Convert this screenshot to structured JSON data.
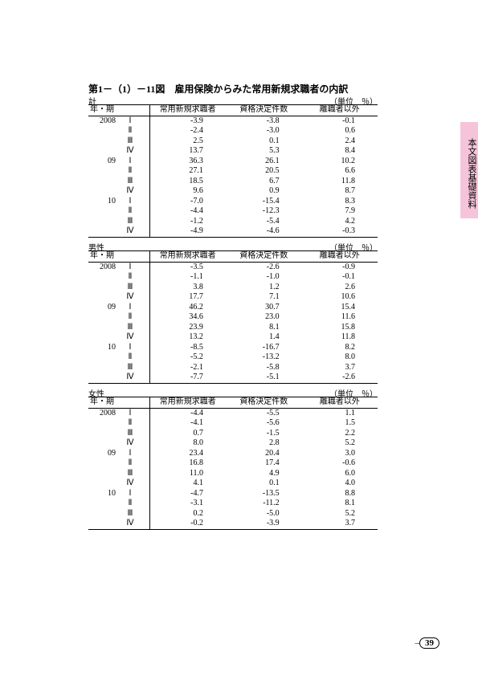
{
  "title": "第1－（1）－11図　雇用保険からみた常用新規求職者の内訳",
  "sideTab": "本文図表基礎資料",
  "headers": {
    "period": "年・期",
    "c1": "常用新規求職者",
    "c2": "資格決定件数",
    "c3": "離職者以外"
  },
  "unit": "（単位　％）",
  "tables": [
    {
      "label": "計",
      "rows": [
        {
          "y": "2008",
          "q": "Ⅰ",
          "v": [
            "-3.9",
            "-3.8",
            "-0.1"
          ]
        },
        {
          "y": "",
          "q": "Ⅱ",
          "v": [
            "-2.4",
            "-3.0",
            "0.6"
          ]
        },
        {
          "y": "",
          "q": "Ⅲ",
          "v": [
            "2.5",
            "0.1",
            "2.4"
          ]
        },
        {
          "y": "",
          "q": "Ⅳ",
          "v": [
            "13.7",
            "5.3",
            "8.4"
          ]
        },
        {
          "y": "09",
          "q": "Ⅰ",
          "v": [
            "36.3",
            "26.1",
            "10.2"
          ]
        },
        {
          "y": "",
          "q": "Ⅱ",
          "v": [
            "27.1",
            "20.5",
            "6.6"
          ]
        },
        {
          "y": "",
          "q": "Ⅲ",
          "v": [
            "18.5",
            "6.7",
            "11.8"
          ]
        },
        {
          "y": "",
          "q": "Ⅳ",
          "v": [
            "9.6",
            "0.9",
            "8.7"
          ]
        },
        {
          "y": "10",
          "q": "Ⅰ",
          "v": [
            "-7.0",
            "-15.4",
            "8.3"
          ]
        },
        {
          "y": "",
          "q": "Ⅱ",
          "v": [
            "-4.4",
            "-12.3",
            "7.9"
          ]
        },
        {
          "y": "",
          "q": "Ⅲ",
          "v": [
            "-1.2",
            "-5.4",
            "4.2"
          ]
        },
        {
          "y": "",
          "q": "Ⅳ",
          "v": [
            "-4.9",
            "-4.6",
            "-0.3"
          ]
        }
      ]
    },
    {
      "label": "男性",
      "rows": [
        {
          "y": "2008",
          "q": "Ⅰ",
          "v": [
            "-3.5",
            "-2.6",
            "-0.9"
          ]
        },
        {
          "y": "",
          "q": "Ⅱ",
          "v": [
            "-1.1",
            "-1.0",
            "-0.1"
          ]
        },
        {
          "y": "",
          "q": "Ⅲ",
          "v": [
            "3.8",
            "1.2",
            "2.6"
          ]
        },
        {
          "y": "",
          "q": "Ⅳ",
          "v": [
            "17.7",
            "7.1",
            "10.6"
          ]
        },
        {
          "y": "09",
          "q": "Ⅰ",
          "v": [
            "46.2",
            "30.7",
            "15.4"
          ]
        },
        {
          "y": "",
          "q": "Ⅱ",
          "v": [
            "34.6",
            "23.0",
            "11.6"
          ]
        },
        {
          "y": "",
          "q": "Ⅲ",
          "v": [
            "23.9",
            "8.1",
            "15.8"
          ]
        },
        {
          "y": "",
          "q": "Ⅳ",
          "v": [
            "13.2",
            "1.4",
            "11.8"
          ]
        },
        {
          "y": "10",
          "q": "Ⅰ",
          "v": [
            "-8.5",
            "-16.7",
            "8.2"
          ]
        },
        {
          "y": "",
          "q": "Ⅱ",
          "v": [
            "-5.2",
            "-13.2",
            "8.0"
          ]
        },
        {
          "y": "",
          "q": "Ⅲ",
          "v": [
            "-2.1",
            "-5.8",
            "3.7"
          ]
        },
        {
          "y": "",
          "q": "Ⅳ",
          "v": [
            "-7.7",
            "-5.1",
            "-2.6"
          ]
        }
      ]
    },
    {
      "label": "女性",
      "rows": [
        {
          "y": "2008",
          "q": "Ⅰ",
          "v": [
            "-4.4",
            "-5.5",
            "1.1"
          ]
        },
        {
          "y": "",
          "q": "Ⅱ",
          "v": [
            "-4.1",
            "-5.6",
            "1.5"
          ]
        },
        {
          "y": "",
          "q": "Ⅲ",
          "v": [
            "0.7",
            "-1.5",
            "2.2"
          ]
        },
        {
          "y": "",
          "q": "Ⅳ",
          "v": [
            "8.0",
            "2.8",
            "5.2"
          ]
        },
        {
          "y": "09",
          "q": "Ⅰ",
          "v": [
            "23.4",
            "20.4",
            "3.0"
          ]
        },
        {
          "y": "",
          "q": "Ⅱ",
          "v": [
            "16.8",
            "17.4",
            "-0.6"
          ]
        },
        {
          "y": "",
          "q": "Ⅲ",
          "v": [
            "11.0",
            "4.9",
            "6.0"
          ]
        },
        {
          "y": "",
          "q": "Ⅳ",
          "v": [
            "4.1",
            "0.1",
            "4.0"
          ]
        },
        {
          "y": "10",
          "q": "Ⅰ",
          "v": [
            "-4.7",
            "-13.5",
            "8.8"
          ]
        },
        {
          "y": "",
          "q": "Ⅱ",
          "v": [
            "-3.1",
            "-11.2",
            "8.1"
          ]
        },
        {
          "y": "",
          "q": "Ⅲ",
          "v": [
            "0.2",
            "-5.0",
            "5.2"
          ]
        },
        {
          "y": "",
          "q": "Ⅳ",
          "v": [
            "-0.2",
            "-3.9",
            "3.7"
          ]
        }
      ]
    }
  ],
  "pageNumber": "39",
  "layout": {
    "blockLeft": 110,
    "blockTops": [
      118,
      300,
      482
    ]
  }
}
